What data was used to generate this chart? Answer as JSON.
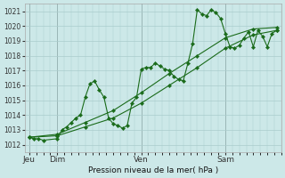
{
  "bg_color": "#cce8e8",
  "grid_color": "#aacccc",
  "line_color": "#1a6b1a",
  "marker_color": "#1a6b1a",
  "xlabel": "Pression niveau de la mer( hPa )",
  "ylim": [
    1011.5,
    1021.5
  ],
  "yticks": [
    1012,
    1013,
    1014,
    1015,
    1016,
    1017,
    1018,
    1019,
    1020,
    1021
  ],
  "day_labels": [
    "Jeu",
    "Dim",
    "Ven",
    "Sam"
  ],
  "day_positions": [
    0,
    24,
    96,
    168
  ],
  "xlim": [
    -4,
    216
  ],
  "series1": {
    "x": [
      0,
      4,
      8,
      12,
      24,
      28,
      32,
      36,
      40,
      44,
      48,
      52,
      56,
      60,
      64,
      68,
      72,
      76,
      80,
      84,
      88,
      92,
      96,
      100,
      104,
      108,
      112,
      116,
      120,
      124,
      128,
      132,
      136,
      140,
      144,
      148,
      152,
      156,
      160,
      164,
      168,
      172,
      176,
      180,
      184,
      188,
      192,
      196,
      200,
      204,
      208,
      212
    ],
    "y": [
      1012.5,
      1012.4,
      1012.4,
      1012.3,
      1012.4,
      1013.0,
      1013.2,
      1013.5,
      1013.8,
      1014.0,
      1015.2,
      1016.1,
      1016.3,
      1015.7,
      1015.2,
      1013.8,
      1013.4,
      1013.3,
      1013.1,
      1013.3,
      1014.8,
      1015.2,
      1017.1,
      1017.2,
      1017.2,
      1017.5,
      1017.3,
      1017.1,
      1017.0,
      1016.6,
      1016.4,
      1016.3,
      1017.5,
      1018.8,
      1021.1,
      1020.8,
      1020.7,
      1021.1,
      1020.9,
      1020.5,
      1019.5,
      1018.6,
      1018.5,
      1018.7,
      1019.2,
      1019.6,
      1018.6,
      1019.7,
      1019.3,
      1018.6,
      1019.5,
      1019.7
    ]
  },
  "series2": {
    "x": [
      0,
      24,
      48,
      72,
      96,
      120,
      144,
      168,
      192,
      212
    ],
    "y": [
      1012.5,
      1012.6,
      1013.2,
      1013.8,
      1014.8,
      1016.0,
      1017.2,
      1018.5,
      1019.4,
      1019.7
    ]
  },
  "series3": {
    "x": [
      0,
      24,
      48,
      72,
      96,
      120,
      144,
      168,
      192,
      212
    ],
    "y": [
      1012.5,
      1012.7,
      1013.5,
      1014.3,
      1015.5,
      1016.8,
      1018.0,
      1019.2,
      1019.8,
      1019.9
    ]
  }
}
